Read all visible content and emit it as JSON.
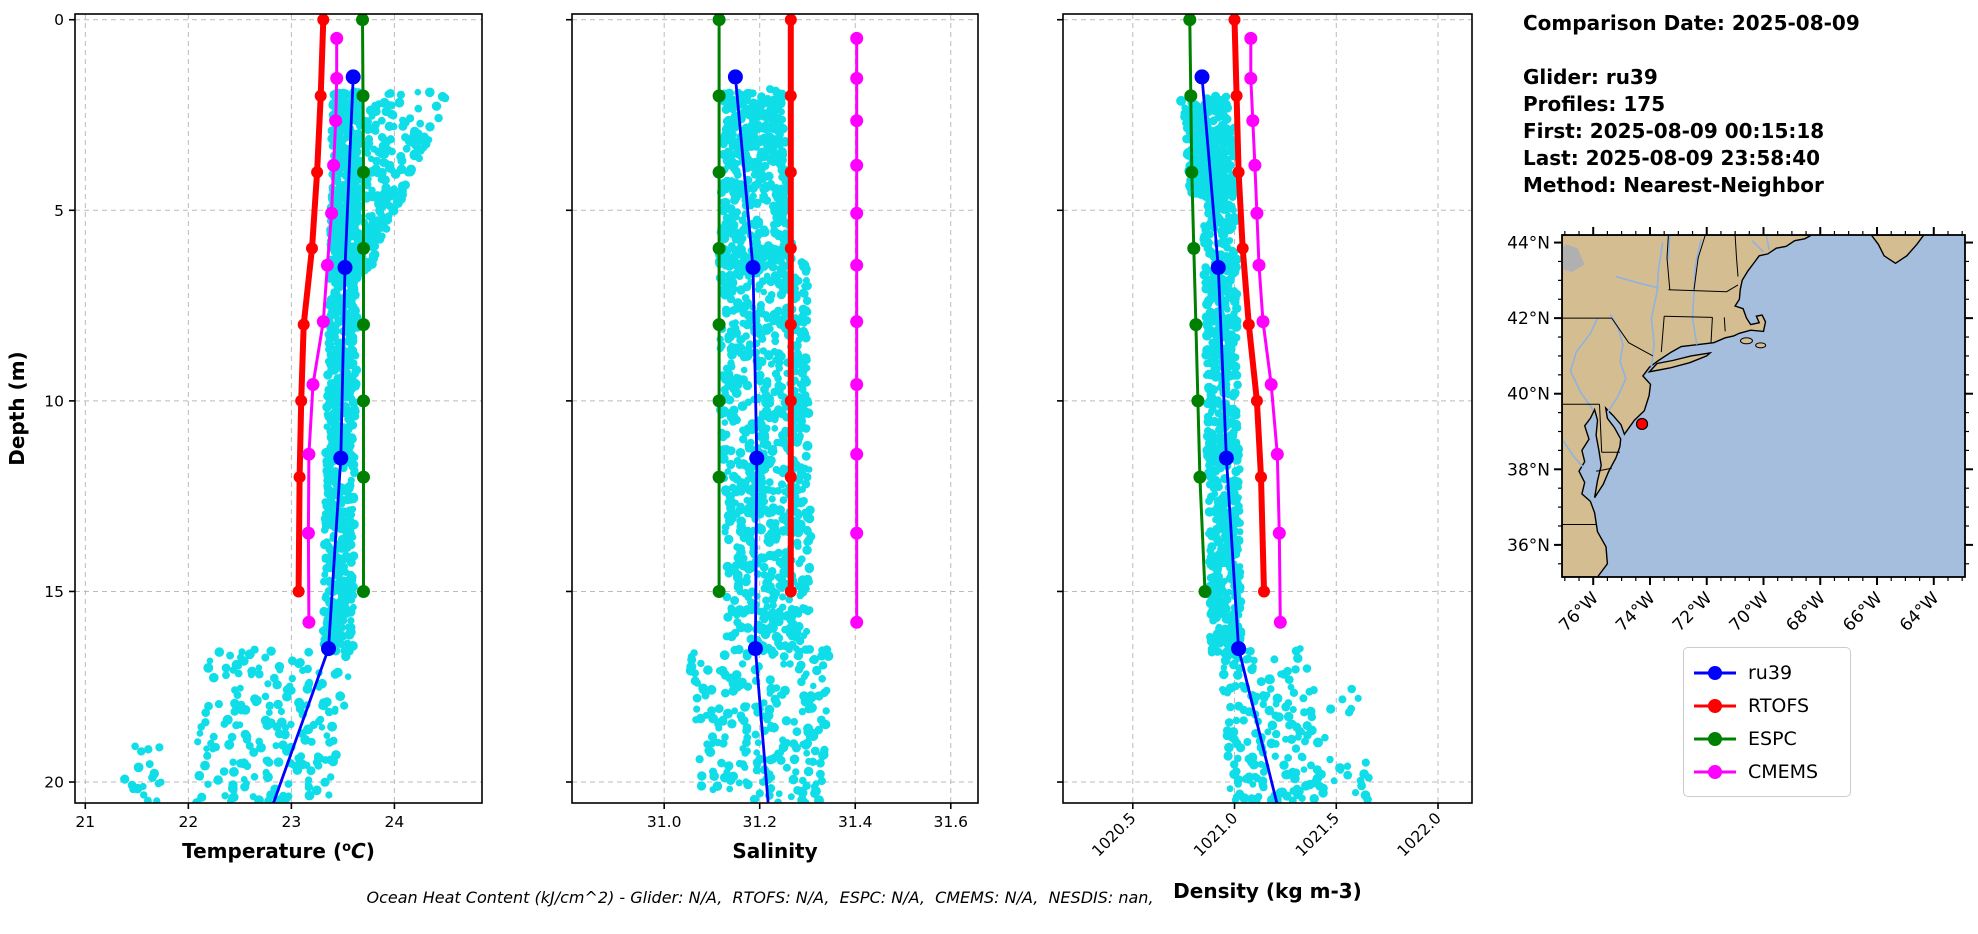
{
  "info_panel": {
    "comparison_date": "Comparison Date: 2025-08-09",
    "glider": "Glider: ru39",
    "profiles": "Profiles: 175",
    "first": "First: 2025-08-09 00:15:18",
    "last": "Last: 2025-08-09 23:58:40",
    "method": "Method: Nearest-Neighbor"
  },
  "footer": "Ocean Heat Content (kJ/cm^2) - Glider: N/A,  RTOFS: N/A,  ESPC: N/A,  CMEMS: N/A,  NESDIS: nan,",
  "legend": {
    "items": [
      {
        "label": "ru39",
        "color": "#0000ff"
      },
      {
        "label": "RTOFS",
        "color": "#ff0000"
      },
      {
        "label": "ESPC",
        "color": "#008000"
      },
      {
        "label": "CMEMS",
        "color": "#ff00ff"
      }
    ]
  },
  "depth_axis": {
    "label": "Depth (m)",
    "ticks": [
      0,
      5,
      10,
      15,
      20
    ],
    "range": [
      -0.15,
      20.55
    ]
  },
  "scatter_style": {
    "name": "glider-raw-points",
    "color": "#0fdde8"
  },
  "chart_data": [
    {
      "id": "temperature",
      "type": "scatter",
      "xlabel_segments": [
        {
          "t": "Temperature ("
        },
        {
          "t": "o",
          "sup": true
        },
        {
          "t": "C",
          "italic": true
        },
        {
          "t": ")"
        }
      ],
      "x_range": [
        20.9,
        24.85
      ],
      "xticks": [
        {
          "v": 21,
          "label": "21"
        },
        {
          "v": 22,
          "label": "22"
        },
        {
          "v": 23,
          "label": "23"
        },
        {
          "v": 24,
          "label": "24"
        }
      ],
      "tick_rotation": 0,
      "scatter_regions": [
        {
          "d0": 1.9,
          "d1": 6.8,
          "xl": [
            23.42,
            23.42
          ],
          "xr": [
            24.55,
            23.72
          ],
          "n": 330
        },
        {
          "d0": 1.9,
          "d1": 16.6,
          "xl": [
            23.4,
            23.3
          ],
          "xr": [
            23.67,
            23.6
          ],
          "n": 900
        },
        {
          "d0": 16.5,
          "d1": 20.55,
          "xl": [
            22.15,
            22.0
          ],
          "xr": [
            23.62,
            23.35
          ],
          "n": 200
        },
        {
          "d0": 19.0,
          "d1": 20.5,
          "xl": [
            21.38,
            21.38
          ],
          "xr": [
            21.75,
            21.75
          ],
          "n": 18
        }
      ],
      "series": [
        {
          "name": "RTOFS",
          "color": "#ff0000",
          "lw": 6,
          "mr": 6,
          "points": [
            [
              23.31,
              0
            ],
            [
              23.285,
              2
            ],
            [
              23.25,
              4
            ],
            [
              23.2,
              6
            ],
            [
              23.12,
              8
            ],
            [
              23.095,
              10
            ],
            [
              23.08,
              12
            ],
            [
              23.07,
              15
            ]
          ]
        },
        {
          "name": "ESPC",
          "color": "#008000",
          "lw": 3,
          "mr": 6.5,
          "points": [
            [
              23.69,
              0
            ],
            [
              23.695,
              2
            ],
            [
              23.7,
              4
            ],
            [
              23.7,
              6
            ],
            [
              23.7,
              8
            ],
            [
              23.7,
              10
            ],
            [
              23.7,
              12
            ],
            [
              23.7,
              15
            ]
          ]
        },
        {
          "name": "CMEMS",
          "color": "#ff00ff",
          "lw": 3,
          "mr": 6.5,
          "points": [
            [
              23.44,
              0.49
            ],
            [
              23.44,
              1.54
            ],
            [
              23.43,
              2.65
            ],
            [
              23.41,
              3.82
            ],
            [
              23.39,
              5.08
            ],
            [
              23.35,
              6.44
            ],
            [
              23.31,
              7.92
            ],
            [
              23.21,
              9.57
            ],
            [
              23.17,
              11.4
            ],
            [
              23.165,
              13.47
            ],
            [
              23.17,
              15.81
            ]
          ]
        },
        {
          "name": "ru39",
          "color": "#0000ff",
          "lw": 2.8,
          "mr": 7.5,
          "no_last_marker": true,
          "points": [
            [
              23.6,
              1.5
            ],
            [
              23.52,
              6.5
            ],
            [
              23.48,
              11.5
            ],
            [
              23.36,
              16.5
            ],
            [
              22.82,
              20.6
            ]
          ]
        }
      ]
    },
    {
      "id": "salinity",
      "type": "scatter",
      "xlabel_segments": [
        {
          "t": "Salinity"
        }
      ],
      "x_range": [
        30.807,
        31.657
      ],
      "xticks": [
        {
          "v": 31.0,
          "label": "31.0"
        },
        {
          "v": 31.2,
          "label": "31.2"
        },
        {
          "v": 31.4,
          "label": "31.4"
        },
        {
          "v": 31.6,
          "label": "31.6"
        }
      ],
      "tick_rotation": 0,
      "scatter_regions": [
        {
          "d0": 1.8,
          "d1": 6.5,
          "xl": [
            31.125,
            31.115
          ],
          "xr": [
            31.25,
            31.27
          ],
          "n": 430
        },
        {
          "d0": 6.0,
          "d1": 16.6,
          "xl": [
            31.11,
            31.13
          ],
          "xr": [
            31.3,
            31.31
          ],
          "n": 820
        },
        {
          "d0": 16.5,
          "d1": 20.55,
          "xl": [
            31.05,
            31.08
          ],
          "xr": [
            31.35,
            31.33
          ],
          "n": 240
        }
      ],
      "series": [
        {
          "name": "RTOFS",
          "color": "#ff0000",
          "lw": 6,
          "mr": 6,
          "points": [
            [
              31.265,
              0
            ],
            [
              31.265,
              2
            ],
            [
              31.265,
              4
            ],
            [
              31.265,
              6
            ],
            [
              31.265,
              8
            ],
            [
              31.265,
              10
            ],
            [
              31.265,
              12
            ],
            [
              31.265,
              15
            ]
          ]
        },
        {
          "name": "ESPC",
          "color": "#008000",
          "lw": 3,
          "mr": 6.5,
          "points": [
            [
              31.115,
              0
            ],
            [
              31.115,
              2
            ],
            [
              31.115,
              4
            ],
            [
              31.115,
              6
            ],
            [
              31.115,
              8
            ],
            [
              31.115,
              10
            ],
            [
              31.115,
              12
            ],
            [
              31.115,
              15
            ]
          ]
        },
        {
          "name": "CMEMS",
          "color": "#ff00ff",
          "lw": 3,
          "mr": 6.5,
          "points": [
            [
              31.403,
              0.49
            ],
            [
              31.403,
              1.54
            ],
            [
              31.403,
              2.65
            ],
            [
              31.403,
              3.82
            ],
            [
              31.403,
              5.08
            ],
            [
              31.403,
              6.44
            ],
            [
              31.403,
              7.92
            ],
            [
              31.403,
              9.57
            ],
            [
              31.403,
              11.4
            ],
            [
              31.403,
              13.47
            ],
            [
              31.403,
              15.81
            ]
          ]
        },
        {
          "name": "ru39",
          "color": "#0000ff",
          "lw": 2.8,
          "mr": 7.5,
          "no_last_marker": true,
          "points": [
            [
              31.149,
              1.5
            ],
            [
              31.186,
              6.5
            ],
            [
              31.194,
              11.5
            ],
            [
              31.191,
              16.5
            ],
            [
              31.218,
              20.6
            ]
          ]
        }
      ]
    },
    {
      "id": "density",
      "type": "scatter",
      "xlabel_segments": [
        {
          "t": "Density (kg m-3)"
        }
      ],
      "x_range": [
        1020.157,
        1022.167
      ],
      "xticks": [
        {
          "v": 1020.5,
          "label": "1020.5"
        },
        {
          "v": 1021.0,
          "label": "1021.0"
        },
        {
          "v": 1021.5,
          "label": "1021.5"
        },
        {
          "v": 1022.0,
          "label": "1022.0"
        }
      ],
      "tick_rotation": -45,
      "scatter_regions": [
        {
          "d0": 2.0,
          "d1": 4.6,
          "xl": [
            1020.73,
            1020.78
          ],
          "xr": [
            1020.97,
            1020.95
          ],
          "n": 270
        },
        {
          "d0": 2.8,
          "d1": 16.6,
          "xl": [
            1020.84,
            1020.88
          ],
          "xr": [
            1021.0,
            1021.04
          ],
          "n": 820
        },
        {
          "d0": 16.5,
          "d1": 20.55,
          "xl": [
            1020.92,
            1020.98
          ],
          "xr": [
            1021.35,
            1021.45
          ],
          "n": 185
        },
        {
          "d0": 17.5,
          "d1": 20.5,
          "xl": [
            1021.35,
            1021.4
          ],
          "xr": [
            1021.6,
            1021.68
          ],
          "n": 25
        }
      ],
      "series": [
        {
          "name": "RTOFS",
          "color": "#ff0000",
          "lw": 6,
          "mr": 6,
          "points": [
            [
              1021.0,
              0
            ],
            [
              1021.01,
              2
            ],
            [
              1021.02,
              4
            ],
            [
              1021.04,
              6
            ],
            [
              1021.07,
              8
            ],
            [
              1021.11,
              10
            ],
            [
              1021.13,
              12
            ],
            [
              1021.145,
              15
            ]
          ]
        },
        {
          "name": "ESPC",
          "color": "#008000",
          "lw": 3,
          "mr": 6.5,
          "points": [
            [
              1020.78,
              0
            ],
            [
              1020.785,
              2
            ],
            [
              1020.79,
              4
            ],
            [
              1020.8,
              6
            ],
            [
              1020.81,
              8
            ],
            [
              1020.82,
              10
            ],
            [
              1020.83,
              12
            ],
            [
              1020.855,
              15
            ]
          ]
        },
        {
          "name": "CMEMS",
          "color": "#ff00ff",
          "lw": 3,
          "mr": 6.5,
          "points": [
            [
              1021.08,
              0.49
            ],
            [
              1021.08,
              1.54
            ],
            [
              1021.09,
              2.65
            ],
            [
              1021.1,
              3.82
            ],
            [
              1021.11,
              5.08
            ],
            [
              1021.12,
              6.44
            ],
            [
              1021.14,
              7.92
            ],
            [
              1021.18,
              9.57
            ],
            [
              1021.21,
              11.4
            ],
            [
              1021.22,
              13.47
            ],
            [
              1021.225,
              15.81
            ]
          ]
        },
        {
          "name": "ru39",
          "color": "#0000ff",
          "lw": 2.8,
          "mr": 7.5,
          "no_last_marker": true,
          "points": [
            [
              1020.84,
              1.5
            ],
            [
              1020.92,
              6.5
            ],
            [
              1020.96,
              11.5
            ],
            [
              1021.02,
              16.5
            ],
            [
              1021.21,
              20.6
            ]
          ]
        }
      ]
    }
  ],
  "map": {
    "lon_range": [
      -77.1,
      -62.9
    ],
    "lat_range": [
      35.15,
      44.2
    ],
    "lat_ticks": [
      {
        "v": 36,
        "label": "36°N"
      },
      {
        "v": 38,
        "label": "38°N"
      },
      {
        "v": 40,
        "label": "40°N"
      },
      {
        "v": 42,
        "label": "42°N"
      },
      {
        "v": 44,
        "label": "44°N"
      }
    ],
    "lon_ticks": [
      {
        "v": -76,
        "label": "76°W"
      },
      {
        "v": -74,
        "label": "74°W"
      },
      {
        "v": -72,
        "label": "72°W"
      },
      {
        "v": -70,
        "label": "70°W"
      },
      {
        "v": -68,
        "label": "68°W"
      },
      {
        "v": -66,
        "label": "66°W"
      },
      {
        "v": -64,
        "label": "64°W"
      }
    ],
    "colors": {
      "ocean": "#a5bedd",
      "land": "#d5bd92",
      "lake": "#b0b0b0",
      "river": "#8fb2e0",
      "border": "#000000"
    },
    "marker": {
      "lon": -74.28,
      "lat": 39.2,
      "color": "#ff0000"
    }
  }
}
